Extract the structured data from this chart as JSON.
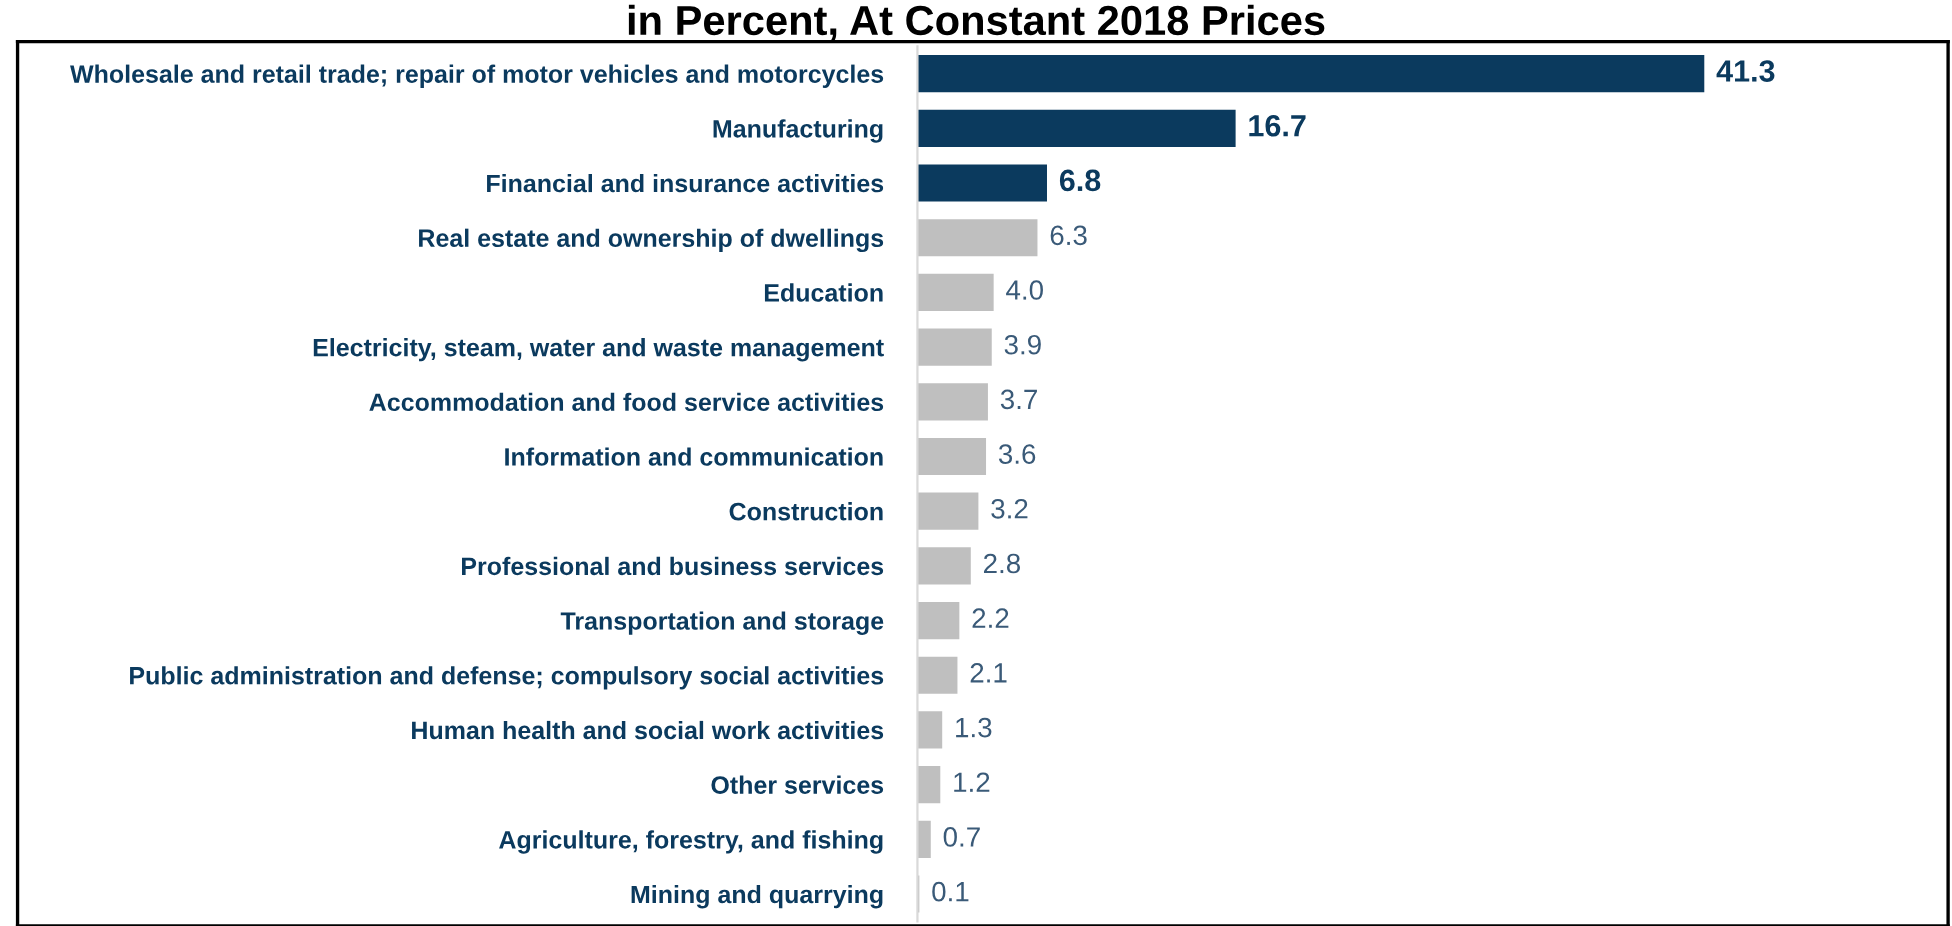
{
  "chart_data": {
    "type": "bar",
    "orientation": "horizontal",
    "relative": false,
    "title": "in Percent, At Constant 2018 Prices",
    "categories": [
      "Wholesale and retail trade; repair of motor vehicles and motorcycles",
      "Manufacturing",
      "Financial and insurance activities",
      "Real estate and ownership of dwellings",
      "Education",
      "Electricity, steam, water and waste management",
      "Accommodation and food service activities",
      "Information and communication",
      "Construction",
      "Professional and business services",
      "Transportation and storage",
      "Public administration and defense; compulsory social activities",
      "Human health and social work activities",
      "Other services",
      "Agriculture, forestry, and fishing",
      "Mining and quarrying"
    ],
    "values": [
      41.3,
      16.7,
      6.8,
      6.3,
      4.0,
      3.9,
      3.7,
      3.6,
      3.2,
      2.8,
      2.2,
      2.1,
      1.3,
      1.2,
      0.7,
      0.1
    ],
    "value_labels": [
      "41.3",
      "16.7",
      "6.8",
      "6.3",
      "4.0",
      "3.9",
      "3.7",
      "3.6",
      "3.2",
      "2.8",
      "2.2",
      "2.1",
      "1.3",
      "1.2",
      "0.7",
      "0.1"
    ],
    "colors": [
      "#0b3a5e",
      "#0b3a5e",
      "#0b3a5e",
      "#bfbfbf",
      "#bfbfbf",
      "#bfbfbf",
      "#bfbfbf",
      "#bfbfbf",
      "#bfbfbf",
      "#bfbfbf",
      "#bfbfbf",
      "#bfbfbf",
      "#bfbfbf",
      "#bfbfbf",
      "#bfbfbf",
      "#bfbfbf"
    ],
    "grid": false,
    "legend": false
  }
}
